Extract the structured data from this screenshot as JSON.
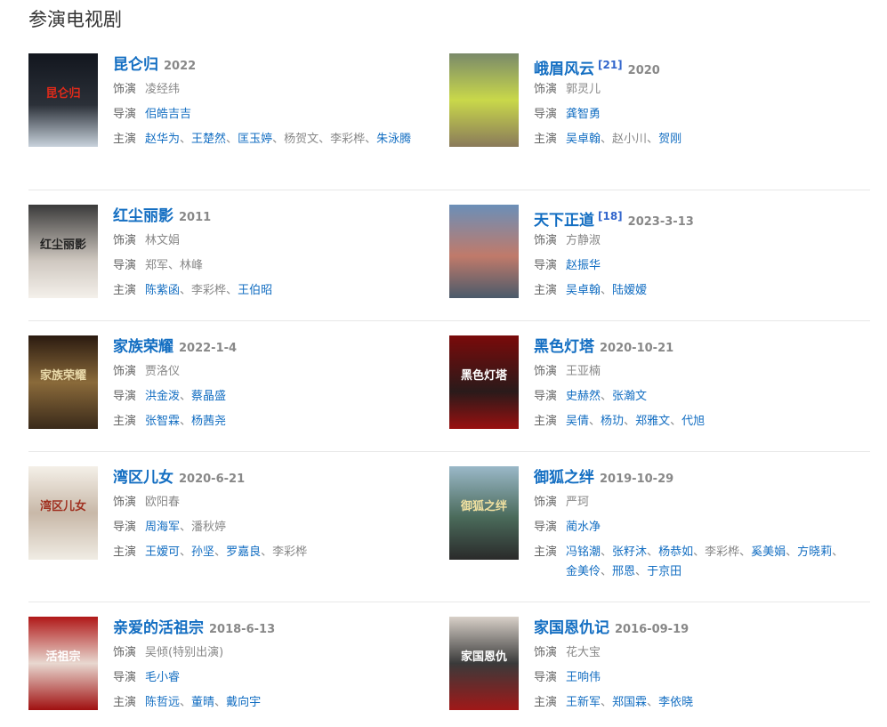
{
  "heading": "参演电视剧",
  "labels": {
    "role": "饰演",
    "director": "导演",
    "cast": "主演"
  },
  "separator": "、",
  "colors": {
    "link": "#136ec2",
    "text": "#888888",
    "label": "#666666"
  },
  "dramas": [
    {
      "title": "昆仑归",
      "date": "2022",
      "poster": {
        "bg": "linear-gradient(#12161e,#2b3038 55%,#c8d2dc)",
        "text": "昆仑归",
        "color": "#e02a1a"
      },
      "role": [
        {
          "name": "凌经纬",
          "link": false
        }
      ],
      "director": [
        {
          "name": "佀皓吉吉",
          "link": true
        }
      ],
      "cast": [
        {
          "name": "赵华为",
          "link": true
        },
        {
          "name": "王楚然",
          "link": true
        },
        {
          "name": "匡玉婷",
          "link": true
        },
        {
          "name": "杨贺文",
          "link": false
        },
        {
          "name": "李彩桦",
          "link": false
        },
        {
          "name": "朱泳腾",
          "link": true
        }
      ]
    },
    {
      "title": "峨眉风云",
      "cite": "[21]",
      "date": "2020",
      "poster": {
        "bg": "linear-gradient(#7a8a6a,#c9d84a 50%,#8a7a5a)",
        "text": "",
        "color": "#fff"
      },
      "role": [
        {
          "name": "郭灵儿",
          "link": false
        }
      ],
      "director": [
        {
          "name": "龚智勇",
          "link": true
        }
      ],
      "cast": [
        {
          "name": "吴卓翰",
          "link": true
        },
        {
          "name": "赵小川",
          "link": false
        },
        {
          "name": "贺刚",
          "link": true
        }
      ]
    },
    {
      "title": "红尘丽影",
      "date": "2011",
      "poster": {
        "bg": "linear-gradient(#3a3a3a,#cfc8c0 60%,#f4f0ea)",
        "text": "红尘丽影",
        "color": "#222"
      },
      "role": [
        {
          "name": "林文娟",
          "link": false
        }
      ],
      "director": [
        {
          "name": "郑军",
          "link": false
        },
        {
          "name": "林峰",
          "link": false
        }
      ],
      "cast": [
        {
          "name": "陈紫函",
          "link": true
        },
        {
          "name": "李彩桦",
          "link": false
        },
        {
          "name": "王伯昭",
          "link": true
        }
      ]
    },
    {
      "title": "天下正道",
      "cite": "[18]",
      "date": "2023-3-13",
      "poster": {
        "bg": "linear-gradient(#6b8fb8,#c07a6a 55%,#4a5a6a)",
        "text": "",
        "color": "#fff"
      },
      "role": [
        {
          "name": "方静淑",
          "link": false
        }
      ],
      "director": [
        {
          "name": "赵振华",
          "link": true
        }
      ],
      "cast": [
        {
          "name": "吴卓翰",
          "link": true
        },
        {
          "name": "陆嫒嫒",
          "link": true
        }
      ]
    },
    {
      "title": "家族荣耀",
      "date": "2022-1-4",
      "poster": {
        "bg": "linear-gradient(#2a1a10,#8a6a3a 50%,#3a2a1a)",
        "text": "家族荣耀",
        "color": "#e8d8a8"
      },
      "role": [
        {
          "name": "贾洛仪",
          "link": false
        }
      ],
      "director": [
        {
          "name": "洪金泼",
          "link": true
        },
        {
          "name": "蔡晶盛",
          "link": true
        }
      ],
      "cast": [
        {
          "name": "张智霖",
          "link": true
        },
        {
          "name": "杨茜尧",
          "link": true
        }
      ]
    },
    {
      "title": "黑色灯塔",
      "date": "2020-10-21",
      "poster": {
        "bg": "linear-gradient(#7a0a0a,#2a1a1a 60%,#9a1010)",
        "text": "黑色灯塔",
        "color": "#fff"
      },
      "role": [
        {
          "name": "王亚楠",
          "link": false
        }
      ],
      "director": [
        {
          "name": "史赫然",
          "link": true
        },
        {
          "name": "张瀚文",
          "link": true
        }
      ],
      "cast": [
        {
          "name": "吴倩",
          "link": true
        },
        {
          "name": "杨玏",
          "link": true
        },
        {
          "name": "郑雅文",
          "link": true
        },
        {
          "name": "代旭",
          "link": true
        }
      ]
    },
    {
      "title": "湾区儿女",
      "date": "2020-6-21",
      "poster": {
        "bg": "linear-gradient(#f4f0e8,#c8b8a8 50%,#f0ece4)",
        "text": "湾区儿女",
        "color": "#a03020"
      },
      "role": [
        {
          "name": "欧阳春",
          "link": false
        }
      ],
      "director": [
        {
          "name": "周海军",
          "link": true
        },
        {
          "name": "潘秋婷",
          "link": false
        }
      ],
      "cast": [
        {
          "name": "王嫒可",
          "link": true
        },
        {
          "name": "孙坚",
          "link": true
        },
        {
          "name": "罗嘉良",
          "link": true
        },
        {
          "name": "李彩桦",
          "link": false
        }
      ]
    },
    {
      "title": "御狐之绊",
      "date": "2019-10-29",
      "poster": {
        "bg": "linear-gradient(#9ab8c8,#4a6a5a 55%,#2a2a2a)",
        "text": "御狐之绊",
        "color": "#f0e0a0"
      },
      "role": [
        {
          "name": "严珂",
          "link": false
        }
      ],
      "director": [
        {
          "name": "蔺水净",
          "link": true
        }
      ],
      "cast": [
        {
          "name": "冯铭潮",
          "link": true
        },
        {
          "name": "张籽沐",
          "link": true
        },
        {
          "name": "杨恭如",
          "link": true
        },
        {
          "name": "李彩桦",
          "link": false
        },
        {
          "name": "奚美娟",
          "link": true
        },
        {
          "name": "方晓莉",
          "link": true
        },
        {
          "name": "金美伶",
          "link": true
        },
        {
          "name": "邢恩",
          "link": true
        },
        {
          "name": "于京田",
          "link": true
        }
      ]
    },
    {
      "title": "亲爱的活祖宗",
      "date": "2018-6-13",
      "poster": {
        "bg": "linear-gradient(#b01818,#e8d8d0 50%,#a01010)",
        "text": "活祖宗",
        "color": "#fff"
      },
      "role": [
        {
          "name": "吴倾(特别出演)",
          "link": false
        }
      ],
      "director": [
        {
          "name": "毛小睿",
          "link": true
        }
      ],
      "cast": [
        {
          "name": "陈哲远",
          "link": true
        },
        {
          "name": "董晴",
          "link": true
        },
        {
          "name": "戴向宇",
          "link": true
        }
      ]
    },
    {
      "title": "家国恩仇记",
      "date": "2016-09-19",
      "poster": {
        "bg": "linear-gradient(#d8d0c8,#3a3a3a 50%,#a01818)",
        "text": "家国恩仇",
        "color": "#fff"
      },
      "role": [
        {
          "name": "花大宝",
          "link": false
        }
      ],
      "director": [
        {
          "name": "王响伟",
          "link": true
        }
      ],
      "cast": [
        {
          "name": "王新军",
          "link": true
        },
        {
          "name": "郑国霖",
          "link": true
        },
        {
          "name": "李依晓",
          "link": true
        }
      ]
    }
  ]
}
